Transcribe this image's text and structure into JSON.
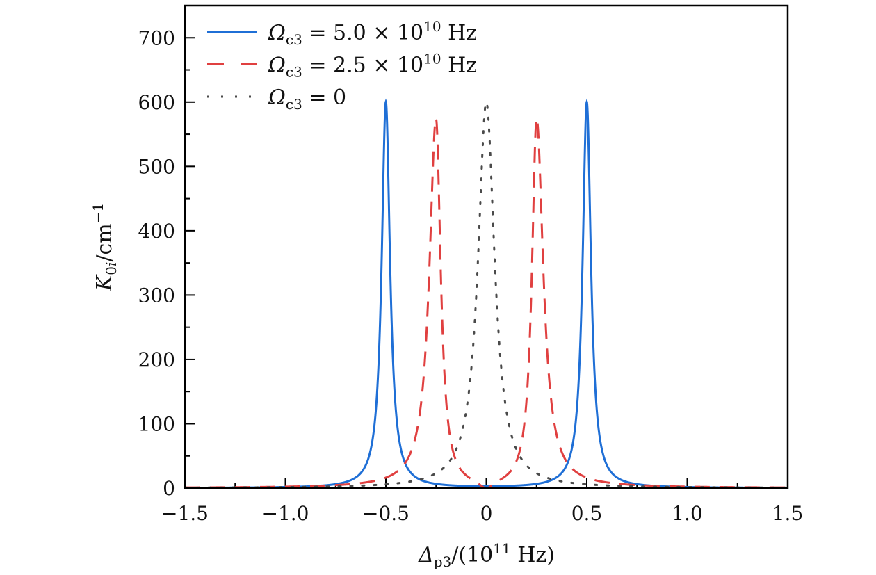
{
  "chart_data": {
    "type": "line",
    "title": "",
    "xlabel": {
      "symbol": "Δ",
      "sub": "p3",
      "rest": "/(10",
      "sup": "11",
      "unit": " Hz)"
    },
    "ylabel": {
      "symbol": "K",
      "sub0": "0",
      "subi": "i",
      "rest": "/cm",
      "sup": "−1"
    },
    "xlim": [
      -1.5,
      1.5
    ],
    "ylim": [
      0,
      750
    ],
    "xticks": [
      -1.5,
      -1.0,
      -0.5,
      0,
      0.5,
      1.0,
      1.5
    ],
    "xtick_labels": [
      "−1.5",
      "−1.0",
      "−0.5",
      "0",
      "0.5",
      "1.0",
      "1.5"
    ],
    "yticks": [
      0,
      100,
      200,
      300,
      400,
      500,
      600,
      700
    ],
    "ytick_labels": [
      "0",
      "100",
      "200",
      "300",
      "400",
      "500",
      "600",
      "700"
    ],
    "legend_position": "top-left",
    "grid": false,
    "series": [
      {
        "name": "Ωc3 = 5.0×10^10 Hz",
        "label": {
          "symbol": "Ω",
          "sub": "c3",
          "eq": " = 5.0 × 10",
          "sup": "10",
          "unit": " Hz"
        },
        "color": "#1f6fd6",
        "style": "solid",
        "peaks": [
          {
            "center": -0.5,
            "height": 600
          },
          {
            "center": 0.5,
            "height": 600
          }
        ],
        "half_width": 0.025
      },
      {
        "name": "Ωc3 = 2.5×10^10 Hz",
        "label": {
          "symbol": "Ω",
          "sub": "c3",
          "eq": " = 2.5 × 10",
          "sup": "10",
          "unit": " Hz"
        },
        "color": "#e04040",
        "style": "dashed",
        "peaks": [
          {
            "center": -0.25,
            "height": 590
          },
          {
            "center": 0.25,
            "height": 590
          }
        ],
        "half_width": 0.03
      },
      {
        "name": "Ωc3 = 0",
        "label": {
          "symbol": "Ω",
          "sub": "c3",
          "eq": " = 0",
          "sup": "",
          "unit": ""
        },
        "color": "#4a4a4a",
        "style": "dotted",
        "peaks": [
          {
            "center": 0,
            "height": 600
          }
        ],
        "half_width": 0.05
      }
    ]
  }
}
